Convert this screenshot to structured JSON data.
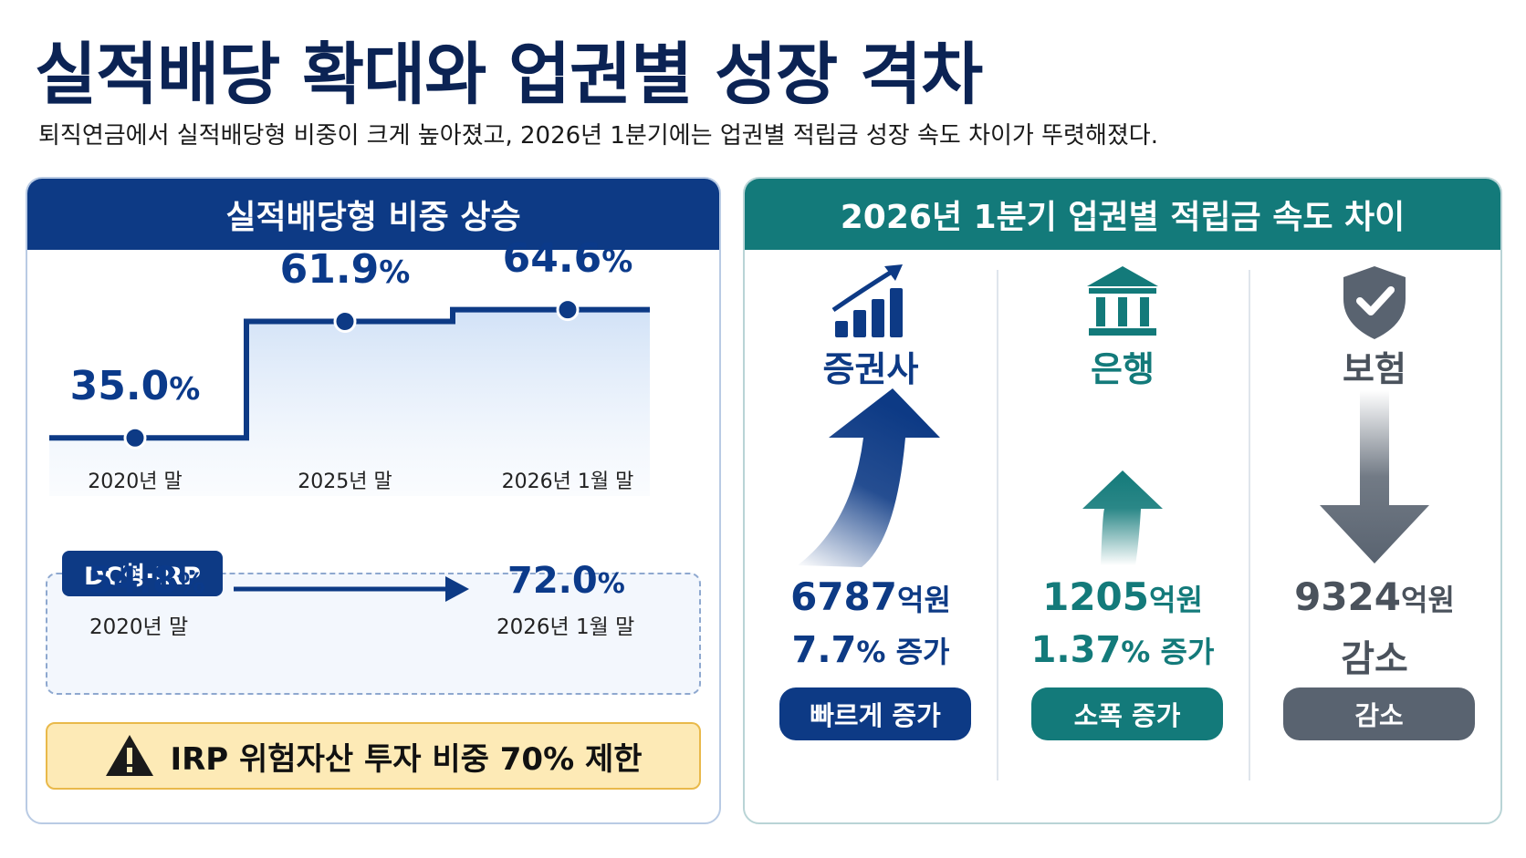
{
  "title": "실적배당 확대와 업권별 성장 격차",
  "subtitle": "퇴직연금에서 실적배당형 비중이 크게 높아졌고, 2026년 1분기에는 업권별 적립금 성장 속도 차이가 뚜렷해졌다.",
  "left_panel": {
    "header": "실적배당형 비중 상승",
    "chart_data": {
      "type": "line",
      "categories": [
        "2020년 말",
        "2025년 말",
        "2026년 1월 말"
      ],
      "values": [
        35.0,
        61.9,
        64.6
      ],
      "value_labels": [
        "35.0",
        "61.9",
        "64.6"
      ],
      "unit": "%"
    },
    "dc_irp": {
      "badge": "DC형·IRP",
      "from_value": "54.8",
      "from_label": "2020년 말",
      "to_value": "72.0",
      "to_label": "2026년 1월 말",
      "unit": "%"
    },
    "warning": "IRP 위험자산 투자 비중 70% 제한"
  },
  "right_panel": {
    "header": "2026년 1분기 업권별 적립금 속도 차이",
    "columns": [
      {
        "name": "증권사",
        "icon": "bar-chart-growth-icon",
        "amount": "6787",
        "amount_unit": "억원",
        "change_value": "7.7",
        "change_unit": "%",
        "change_word": " 증가",
        "badge": "빠르게 증가",
        "color": "#0d3a85"
      },
      {
        "name": "은행",
        "icon": "bank-building-icon",
        "amount": "1205",
        "amount_unit": "억원",
        "change_value": "1.37",
        "change_unit": "%",
        "change_word": " 증가",
        "badge": "소폭 증가",
        "color": "#137a7a"
      },
      {
        "name": "보험",
        "icon": "shield-check-icon",
        "amount": "9324",
        "amount_unit": "억원",
        "change_text": "감소",
        "badge": "감소",
        "color": "#596370"
      }
    ]
  },
  "colors": {
    "navy": "#0d3a85",
    "teal": "#137a7a",
    "gray": "#596370",
    "warning_bg": "#fdeab6"
  }
}
